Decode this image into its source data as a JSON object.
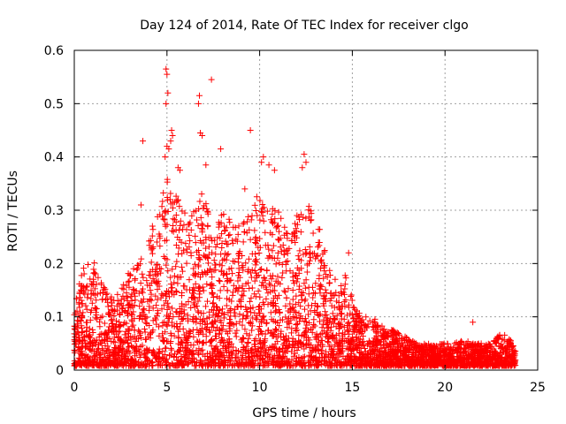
{
  "chart_data": {
    "type": "scatter",
    "title": "Day 124 of 2014, Rate Of TEC Index for receiver clgo",
    "xlabel": "GPS time / hours",
    "ylabel": "ROTI / TECUs",
    "xlim": [
      0,
      25
    ],
    "ylim": [
      0,
      0.6
    ],
    "xticks": [
      0,
      5,
      10,
      15,
      20,
      25
    ],
    "yticks": [
      0,
      0.1,
      0.2,
      0.3,
      0.4,
      0.5,
      0.6
    ],
    "grid": true,
    "marker": "+",
    "marker_color": "#ff0000",
    "series": [
      {
        "name": "ROTI",
        "envelope": [
          {
            "x": 0.0,
            "y": 0.12
          },
          {
            "x": 0.5,
            "y": 0.2
          },
          {
            "x": 1.0,
            "y": 0.22
          },
          {
            "x": 1.5,
            "y": 0.16
          },
          {
            "x": 2.0,
            "y": 0.14
          },
          {
            "x": 2.5,
            "y": 0.15
          },
          {
            "x": 3.0,
            "y": 0.19
          },
          {
            "x": 3.5,
            "y": 0.2
          },
          {
            "x": 4.0,
            "y": 0.25
          },
          {
            "x": 4.5,
            "y": 0.3
          },
          {
            "x": 5.0,
            "y": 0.36
          },
          {
            "x": 5.5,
            "y": 0.33
          },
          {
            "x": 6.0,
            "y": 0.3
          },
          {
            "x": 6.5,
            "y": 0.3
          },
          {
            "x": 7.0,
            "y": 0.35
          },
          {
            "x": 7.5,
            "y": 0.26
          },
          {
            "x": 8.0,
            "y": 0.3
          },
          {
            "x": 8.5,
            "y": 0.28
          },
          {
            "x": 9.0,
            "y": 0.27
          },
          {
            "x": 9.5,
            "y": 0.3
          },
          {
            "x": 10.0,
            "y": 0.34
          },
          {
            "x": 10.5,
            "y": 0.32
          },
          {
            "x": 11.0,
            "y": 0.3
          },
          {
            "x": 11.5,
            "y": 0.27
          },
          {
            "x": 12.0,
            "y": 0.29
          },
          {
            "x": 12.5,
            "y": 0.32
          },
          {
            "x": 13.0,
            "y": 0.28
          },
          {
            "x": 13.5,
            "y": 0.26
          },
          {
            "x": 14.0,
            "y": 0.17
          },
          {
            "x": 14.5,
            "y": 0.19
          },
          {
            "x": 15.0,
            "y": 0.14
          },
          {
            "x": 15.5,
            "y": 0.1
          },
          {
            "x": 16.0,
            "y": 0.1
          },
          {
            "x": 16.5,
            "y": 0.09
          },
          {
            "x": 17.0,
            "y": 0.08
          },
          {
            "x": 17.5,
            "y": 0.07
          },
          {
            "x": 18.0,
            "y": 0.06
          },
          {
            "x": 18.5,
            "y": 0.05
          },
          {
            "x": 19.0,
            "y": 0.05
          },
          {
            "x": 19.5,
            "y": 0.05
          },
          {
            "x": 20.0,
            "y": 0.05
          },
          {
            "x": 20.5,
            "y": 0.05
          },
          {
            "x": 21.0,
            "y": 0.06
          },
          {
            "x": 21.5,
            "y": 0.05
          },
          {
            "x": 22.0,
            "y": 0.05
          },
          {
            "x": 22.5,
            "y": 0.05
          },
          {
            "x": 23.0,
            "y": 0.07
          },
          {
            "x": 23.5,
            "y": 0.06
          },
          {
            "x": 23.8,
            "y": 0.04
          }
        ],
        "outliers": [
          {
            "x": 4.95,
            "y": 0.565
          },
          {
            "x": 5.0,
            "y": 0.555
          },
          {
            "x": 5.05,
            "y": 0.52
          },
          {
            "x": 4.95,
            "y": 0.5
          },
          {
            "x": 5.25,
            "y": 0.45
          },
          {
            "x": 5.3,
            "y": 0.44
          },
          {
            "x": 5.2,
            "y": 0.43
          },
          {
            "x": 5.1,
            "y": 0.415
          },
          {
            "x": 5.0,
            "y": 0.42
          },
          {
            "x": 4.9,
            "y": 0.4
          },
          {
            "x": 3.7,
            "y": 0.43
          },
          {
            "x": 6.75,
            "y": 0.515
          },
          {
            "x": 6.7,
            "y": 0.5
          },
          {
            "x": 6.8,
            "y": 0.445
          },
          {
            "x": 6.9,
            "y": 0.44
          },
          {
            "x": 7.4,
            "y": 0.545
          },
          {
            "x": 7.1,
            "y": 0.385
          },
          {
            "x": 7.9,
            "y": 0.415
          },
          {
            "x": 9.5,
            "y": 0.45
          },
          {
            "x": 10.1,
            "y": 0.39
          },
          {
            "x": 10.2,
            "y": 0.4
          },
          {
            "x": 10.5,
            "y": 0.385
          },
          {
            "x": 10.8,
            "y": 0.375
          },
          {
            "x": 12.4,
            "y": 0.405
          },
          {
            "x": 12.5,
            "y": 0.39
          },
          {
            "x": 12.3,
            "y": 0.38
          },
          {
            "x": 5.6,
            "y": 0.38
          },
          {
            "x": 5.7,
            "y": 0.375
          },
          {
            "x": 9.2,
            "y": 0.34
          },
          {
            "x": 3.6,
            "y": 0.31
          },
          {
            "x": 14.8,
            "y": 0.22
          },
          {
            "x": 21.5,
            "y": 0.09
          }
        ]
      }
    ]
  }
}
